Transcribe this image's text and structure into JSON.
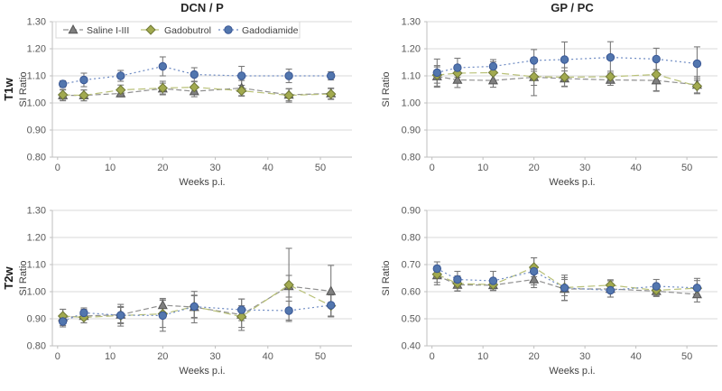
{
  "figure": {
    "background": "#ffffff",
    "column_titles": [
      "DCN / P",
      "GP / PC"
    ],
    "row_labels": [
      "T1w",
      "T2w"
    ],
    "axis_labels": {
      "x": "Weeks p.i.",
      "y": "SI Ratio"
    },
    "colors": {
      "gridline": "#d9d9d9",
      "axis_line": "#bfbfbf",
      "tick_text": "#595959",
      "label_text": "#404040",
      "title_text": "#262626",
      "error_bar": "#7a7a7a",
      "legend_border": "#d9d9d9"
    },
    "legend": {
      "items": [
        {
          "label": "Saline I-III",
          "marker": "triangle",
          "line_color": "#8f8f8f",
          "marker_fill": "#7f7f7f",
          "marker_stroke": "#545454",
          "dash": "6,3"
        },
        {
          "label": "Gadobutrol",
          "marker": "diamond",
          "line_color": "#b9c178",
          "marker_fill": "#a2aa4f",
          "marker_stroke": "#6f7836",
          "dash": "8,4"
        },
        {
          "label": "Gadodiamide",
          "marker": "circle",
          "line_color": "#6e8bc3",
          "marker_fill": "#5276ae",
          "marker_stroke": "#3a5795",
          "dash": "2,3"
        }
      ]
    }
  },
  "chart_data": [
    {
      "type": "line",
      "title": "DCN / P",
      "row_label": "T1w",
      "ylabel": "SI Ratio",
      "xlabel": "Weeks p.i.",
      "show_legend": true,
      "x": [
        1,
        5,
        12,
        20,
        26,
        35,
        44,
        52
      ],
      "xticks": [
        0,
        10,
        20,
        30,
        40,
        50
      ],
      "xlim": [
        -1,
        56
      ],
      "ylim": [
        0.8,
        1.3
      ],
      "yticks": [
        0.8,
        0.9,
        1.0,
        1.1,
        1.2,
        1.3
      ],
      "series": [
        {
          "name": "Saline I-III",
          "values": [
            1.028,
            1.028,
            1.035,
            1.053,
            1.043,
            1.055,
            1.03,
            1.035
          ],
          "errors": [
            0.02,
            0.02,
            0.012,
            0.02,
            0.02,
            0.028,
            0.022,
            0.02
          ]
        },
        {
          "name": "Gadobutrol",
          "values": [
            1.03,
            1.028,
            1.048,
            1.055,
            1.058,
            1.045,
            1.028,
            1.033
          ],
          "errors": [
            0.02,
            0.02,
            0.018,
            0.025,
            0.02,
            0.02,
            0.025,
            0.02
          ]
        },
        {
          "name": "Gadodiamide",
          "values": [
            1.07,
            1.085,
            1.1,
            1.135,
            1.105,
            1.1,
            1.1,
            1.1
          ],
          "errors": [
            0.012,
            0.025,
            0.02,
            0.035,
            0.025,
            0.035,
            0.025,
            0.015
          ]
        }
      ]
    },
    {
      "type": "line",
      "title": "GP / PC",
      "row_label": "",
      "ylabel": "SI Ratio",
      "xlabel": "Weeks p.i.",
      "show_legend": false,
      "x": [
        1,
        5,
        12,
        20,
        26,
        35,
        44,
        52
      ],
      "xticks": [
        0,
        10,
        20,
        30,
        40,
        50
      ],
      "xlim": [
        -1,
        56
      ],
      "ylim": [
        0.8,
        1.3
      ],
      "yticks": [
        0.8,
        0.9,
        1.0,
        1.1,
        1.2,
        1.3
      ],
      "series": [
        {
          "name": "Saline I-III",
          "values": [
            1.098,
            1.085,
            1.083,
            1.095,
            1.09,
            1.085,
            1.083,
            1.067
          ],
          "errors": [
            0.04,
            0.028,
            0.025,
            0.03,
            0.028,
            0.02,
            0.04,
            0.03
          ]
        },
        {
          "name": "Gadobutrol",
          "values": [
            1.103,
            1.11,
            1.112,
            1.097,
            1.095,
            1.097,
            1.105,
            1.062
          ],
          "errors": [
            0.03,
            0.03,
            0.04,
            0.07,
            0.035,
            0.02,
            0.06,
            0.028
          ]
        },
        {
          "name": "Gadodiamide",
          "values": [
            1.112,
            1.13,
            1.135,
            1.157,
            1.16,
            1.168,
            1.162,
            1.145
          ],
          "errors": [
            0.05,
            0.035,
            0.025,
            0.04,
            0.065,
            0.058,
            0.04,
            0.062
          ]
        }
      ]
    },
    {
      "type": "line",
      "title": "",
      "row_label": "T2w",
      "ylabel": "SI Ratio",
      "xlabel": "Weeks p.i.",
      "show_legend": false,
      "x": [
        1,
        5,
        12,
        20,
        26,
        35,
        44,
        52
      ],
      "xticks": [
        0,
        10,
        20,
        30,
        40,
        50
      ],
      "xlim": [
        -1,
        56
      ],
      "ylim": [
        0.8,
        1.3
      ],
      "yticks": [
        0.8,
        0.9,
        1.0,
        1.1,
        1.2,
        1.3
      ],
      "series": [
        {
          "name": "Saline I-III",
          "values": [
            0.905,
            0.91,
            0.915,
            0.95,
            0.943,
            0.915,
            1.02,
            1.002
          ],
          "errors": [
            0.03,
            0.025,
            0.03,
            0.025,
            0.058,
            0.058,
            0.04,
            0.095
          ]
        },
        {
          "name": "Gadobutrol",
          "values": [
            0.91,
            0.905,
            0.912,
            0.918,
            0.945,
            0.908,
            1.025,
            0.948
          ],
          "errors": [
            0.025,
            0.02,
            0.03,
            0.05,
            0.042,
            0.04,
            0.135,
            0.04
          ]
        },
        {
          "name": "Gadodiamide",
          "values": [
            0.89,
            0.922,
            0.913,
            0.912,
            0.945,
            0.933,
            0.93,
            0.95
          ],
          "errors": [
            0.02,
            0.018,
            0.04,
            0.058,
            0.04,
            0.04,
            0.035,
            0.04
          ]
        }
      ]
    },
    {
      "type": "line",
      "title": "",
      "row_label": "",
      "ylabel": "SI Ratio",
      "xlabel": "Weeks p.i.",
      "show_legend": false,
      "x": [
        1,
        5,
        12,
        20,
        26,
        35,
        44,
        52
      ],
      "xticks": [
        0,
        10,
        20,
        30,
        40,
        50
      ],
      "xlim": [
        -1,
        56
      ],
      "ylim": [
        0.4,
        0.9
      ],
      "yticks": [
        0.4,
        0.5,
        0.6,
        0.7,
        0.8,
        0.9
      ],
      "series": [
        {
          "name": "Saline I-III",
          "values": [
            0.66,
            0.625,
            0.624,
            0.645,
            0.61,
            0.61,
            0.602,
            0.59
          ],
          "errors": [
            0.035,
            0.022,
            0.02,
            0.03,
            0.042,
            0.03,
            0.02,
            0.028
          ]
        },
        {
          "name": "Gadobutrol",
          "values": [
            0.664,
            0.63,
            0.626,
            0.69,
            0.615,
            0.624,
            0.605,
            0.613
          ],
          "errors": [
            0.03,
            0.028,
            0.02,
            0.035,
            0.03,
            0.02,
            0.02,
            0.028
          ]
        },
        {
          "name": "Gadodiamide",
          "values": [
            0.685,
            0.645,
            0.64,
            0.675,
            0.614,
            0.605,
            0.62,
            0.614
          ],
          "errors": [
            0.025,
            0.03,
            0.035,
            0.05,
            0.047,
            0.025,
            0.025,
            0.035
          ]
        }
      ]
    }
  ]
}
